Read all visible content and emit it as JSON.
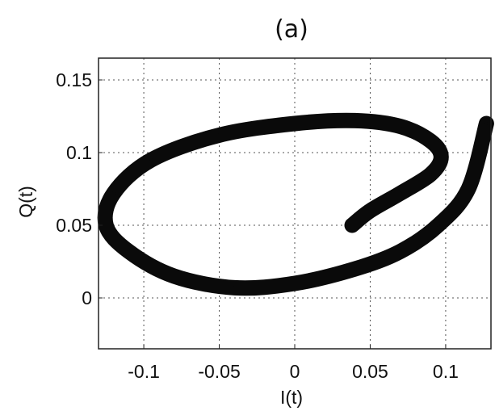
{
  "chart_data": {
    "type": "line",
    "title": "(a)",
    "xlabel": "I(t)",
    "ylabel": "Q(t)",
    "xlim": [
      -0.13,
      0.13
    ],
    "ylim": [
      -0.035,
      0.165
    ],
    "xticks": [
      -0.1,
      -0.05,
      0,
      0.05,
      0.1
    ],
    "xtick_labels": [
      "-0.1",
      "-0.05",
      "0",
      "0.05",
      "0.1"
    ],
    "yticks": [
      0,
      0.05,
      0.1,
      0.15
    ],
    "ytick_labels": [
      "0",
      "0.05",
      "0.1",
      "0.15"
    ],
    "grid": true,
    "legend": false,
    "series": [
      {
        "color": "#0a0a0a",
        "x": [
          0.127,
          0.115,
          0.095,
          0.07,
          0.04,
          0.0,
          -0.04,
          -0.08,
          -0.11,
          -0.125,
          -0.12,
          -0.095,
          -0.05,
          0.0,
          0.04,
          0.07,
          0.09,
          0.097,
          0.09,
          0.07,
          0.05,
          0.038
        ],
        "y": [
          0.12,
          0.075,
          0.05,
          0.032,
          0.02,
          0.01,
          0.007,
          0.015,
          0.032,
          0.05,
          0.072,
          0.095,
          0.112,
          0.12,
          0.122,
          0.118,
          0.108,
          0.097,
          0.085,
          0.072,
          0.06,
          0.05
        ]
      }
    ]
  }
}
